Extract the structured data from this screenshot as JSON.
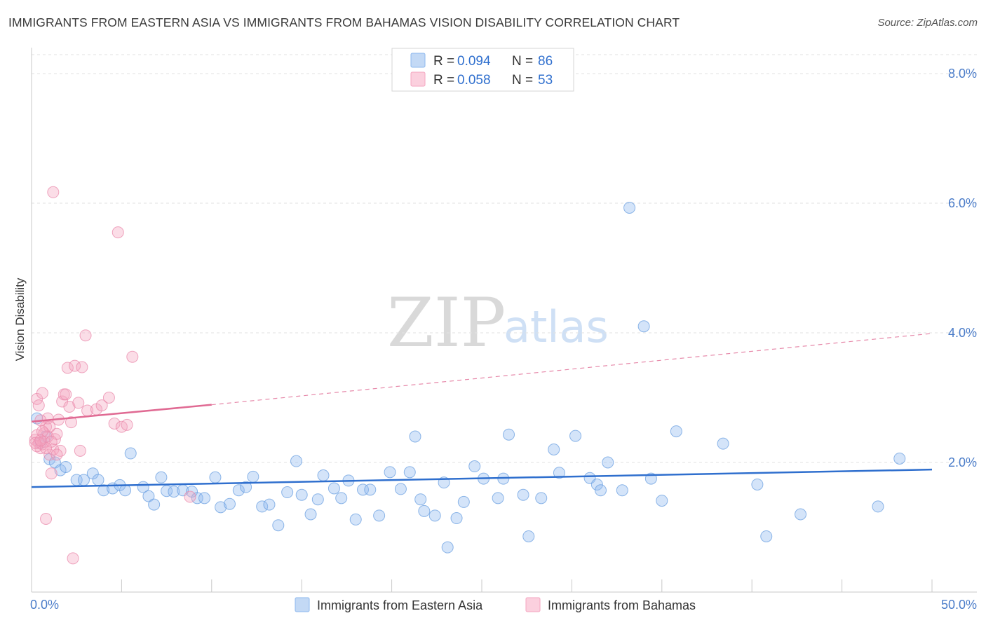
{
  "header": {
    "title": "IMMIGRANTS FROM EASTERN ASIA VS IMMIGRANTS FROM BAHAMAS VISION DISABILITY CORRELATION CHART",
    "source": "Source: ZipAtlas.com"
  },
  "watermark": {
    "zip": "ZIP",
    "atlas": "atlas"
  },
  "legend": {
    "r_label": "R =",
    "n_label": "N =",
    "rows": [
      {
        "r": "0.094",
        "n": "86",
        "color": "#8db8ee"
      },
      {
        "r": "0.058",
        "n": "53",
        "color": "#f4a6c0"
      }
    ]
  },
  "bottom_legend": [
    {
      "label": "Immigrants from Eastern Asia",
      "color": "#8db8ee"
    },
    {
      "label": "Immigrants from Bahamas",
      "color": "#f4a6c0"
    }
  ],
  "chart_data": {
    "type": "scatter",
    "title": "IMMIGRANTS FROM EASTERN ASIA VS IMMIGRANTS FROM BAHAMAS VISION DISABILITY CORRELATION CHART",
    "xlabel": "",
    "ylabel": "Vision Disability",
    "xlim": [
      0,
      50
    ],
    "ylim": [
      0,
      8.4
    ],
    "x_tick_labels": [
      "0.0%",
      "50.0%"
    ],
    "y_ticks": [
      2,
      4,
      6,
      8
    ],
    "y_tick_labels": [
      "2.0%",
      "4.0%",
      "6.0%",
      "8.0%"
    ],
    "grid": true,
    "series": [
      {
        "name": "Immigrants from Eastern Asia",
        "color": "#8db8ee",
        "edge": "#6a9fe0",
        "trend": {
          "x0": 0,
          "y0": 1.62,
          "x1": 50,
          "y1": 1.89,
          "color": "#2f6fce"
        },
        "points": [
          [
            0.3,
            2.68
          ],
          [
            0.8,
            2.4
          ],
          [
            1.0,
            2.05
          ],
          [
            1.3,
            2.0
          ],
          [
            1.6,
            1.88
          ],
          [
            1.9,
            1.93
          ],
          [
            2.5,
            1.73
          ],
          [
            2.9,
            1.73
          ],
          [
            3.4,
            1.83
          ],
          [
            3.7,
            1.73
          ],
          [
            4.0,
            1.57
          ],
          [
            4.5,
            1.6
          ],
          [
            4.9,
            1.65
          ],
          [
            5.2,
            1.57
          ],
          [
            5.5,
            2.14
          ],
          [
            6.2,
            1.62
          ],
          [
            6.5,
            1.48
          ],
          [
            6.8,
            1.35
          ],
          [
            7.2,
            1.77
          ],
          [
            7.5,
            1.56
          ],
          [
            7.9,
            1.55
          ],
          [
            8.4,
            1.57
          ],
          [
            8.9,
            1.55
          ],
          [
            9.2,
            1.45
          ],
          [
            9.6,
            1.45
          ],
          [
            10.2,
            1.77
          ],
          [
            10.5,
            1.31
          ],
          [
            11.0,
            1.36
          ],
          [
            11.5,
            1.57
          ],
          [
            11.9,
            1.62
          ],
          [
            12.3,
            1.78
          ],
          [
            12.8,
            1.32
          ],
          [
            13.2,
            1.35
          ],
          [
            13.7,
            1.03
          ],
          [
            14.2,
            1.54
          ],
          [
            14.7,
            2.02
          ],
          [
            15.0,
            1.5
          ],
          [
            15.5,
            1.2
          ],
          [
            15.9,
            1.43
          ],
          [
            16.2,
            1.8
          ],
          [
            16.8,
            1.6
          ],
          [
            17.2,
            1.45
          ],
          [
            17.6,
            1.72
          ],
          [
            18.0,
            1.12
          ],
          [
            18.4,
            1.58
          ],
          [
            18.8,
            1.58
          ],
          [
            19.3,
            1.18
          ],
          [
            19.9,
            1.85
          ],
          [
            20.5,
            1.59
          ],
          [
            21.0,
            1.85
          ],
          [
            21.3,
            2.4
          ],
          [
            21.6,
            1.43
          ],
          [
            21.8,
            1.25
          ],
          [
            22.4,
            1.18
          ],
          [
            22.9,
            1.69
          ],
          [
            23.1,
            0.69
          ],
          [
            23.6,
            1.14
          ],
          [
            24.0,
            1.39
          ],
          [
            24.6,
            1.94
          ],
          [
            25.1,
            1.75
          ],
          [
            25.9,
            1.45
          ],
          [
            26.2,
            1.75
          ],
          [
            26.5,
            2.43
          ],
          [
            27.3,
            1.5
          ],
          [
            27.6,
            0.86
          ],
          [
            28.3,
            1.45
          ],
          [
            29.0,
            2.2
          ],
          [
            29.3,
            1.84
          ],
          [
            30.2,
            2.41
          ],
          [
            31.0,
            1.76
          ],
          [
            31.4,
            1.66
          ],
          [
            31.6,
            1.57
          ],
          [
            32.0,
            2.0
          ],
          [
            32.8,
            1.57
          ],
          [
            33.2,
            5.93
          ],
          [
            34.0,
            4.1
          ],
          [
            34.4,
            1.75
          ],
          [
            35.0,
            1.41
          ],
          [
            35.8,
            2.48
          ],
          [
            38.4,
            2.29
          ],
          [
            40.3,
            1.66
          ],
          [
            40.8,
            0.86
          ],
          [
            42.7,
            1.2
          ],
          [
            47.0,
            1.32
          ],
          [
            48.2,
            2.06
          ],
          [
            0.5,
            2.3
          ]
        ]
      },
      {
        "name": "Immigrants from Bahamas",
        "color": "#f4a6c0",
        "edge": "#e98aab",
        "trend": {
          "x0": 0,
          "y0": 2.63,
          "x1": 10,
          "y1": 2.89,
          "color": "#e06a93"
        },
        "trend_ext": {
          "x0": 10,
          "y0": 2.89,
          "x1": 50,
          "y1": 3.99
        },
        "points": [
          [
            0.2,
            2.35
          ],
          [
            0.3,
            2.42
          ],
          [
            0.4,
            2.3
          ],
          [
            0.5,
            2.22
          ],
          [
            0.6,
            2.28
          ],
          [
            0.7,
            2.45
          ],
          [
            0.8,
            2.55
          ],
          [
            0.9,
            2.68
          ],
          [
            1.0,
            2.12
          ],
          [
            1.1,
            1.83
          ],
          [
            1.2,
            2.2
          ],
          [
            1.3,
            2.36
          ],
          [
            1.4,
            2.44
          ],
          [
            1.5,
            2.66
          ],
          [
            1.6,
            2.18
          ],
          [
            1.7,
            2.94
          ],
          [
            1.8,
            3.05
          ],
          [
            1.9,
            3.05
          ],
          [
            2.0,
            3.46
          ],
          [
            2.1,
            2.86
          ],
          [
            2.2,
            2.62
          ],
          [
            2.4,
            3.49
          ],
          [
            2.6,
            2.92
          ],
          [
            2.8,
            3.47
          ],
          [
            3.0,
            3.96
          ],
          [
            3.1,
            2.8
          ],
          [
            3.6,
            2.82
          ],
          [
            3.9,
            2.88
          ],
          [
            4.3,
            3.0
          ],
          [
            4.6,
            2.6
          ],
          [
            5.0,
            2.55
          ],
          [
            5.3,
            2.58
          ],
          [
            5.6,
            3.63
          ],
          [
            4.8,
            5.55
          ],
          [
            1.2,
            6.17
          ],
          [
            2.3,
            0.52
          ],
          [
            0.8,
            1.13
          ],
          [
            0.3,
            2.98
          ],
          [
            0.6,
            3.07
          ],
          [
            1.0,
            2.55
          ],
          [
            0.4,
            2.88
          ],
          [
            0.5,
            2.65
          ],
          [
            0.7,
            2.32
          ],
          [
            0.9,
            2.4
          ],
          [
            1.1,
            2.32
          ],
          [
            0.3,
            2.25
          ],
          [
            0.2,
            2.3
          ],
          [
            0.6,
            2.48
          ],
          [
            0.8,
            2.22
          ],
          [
            1.4,
            2.12
          ],
          [
            2.7,
            2.18
          ],
          [
            8.8,
            1.47
          ],
          [
            0.5,
            2.34
          ]
        ]
      }
    ]
  }
}
